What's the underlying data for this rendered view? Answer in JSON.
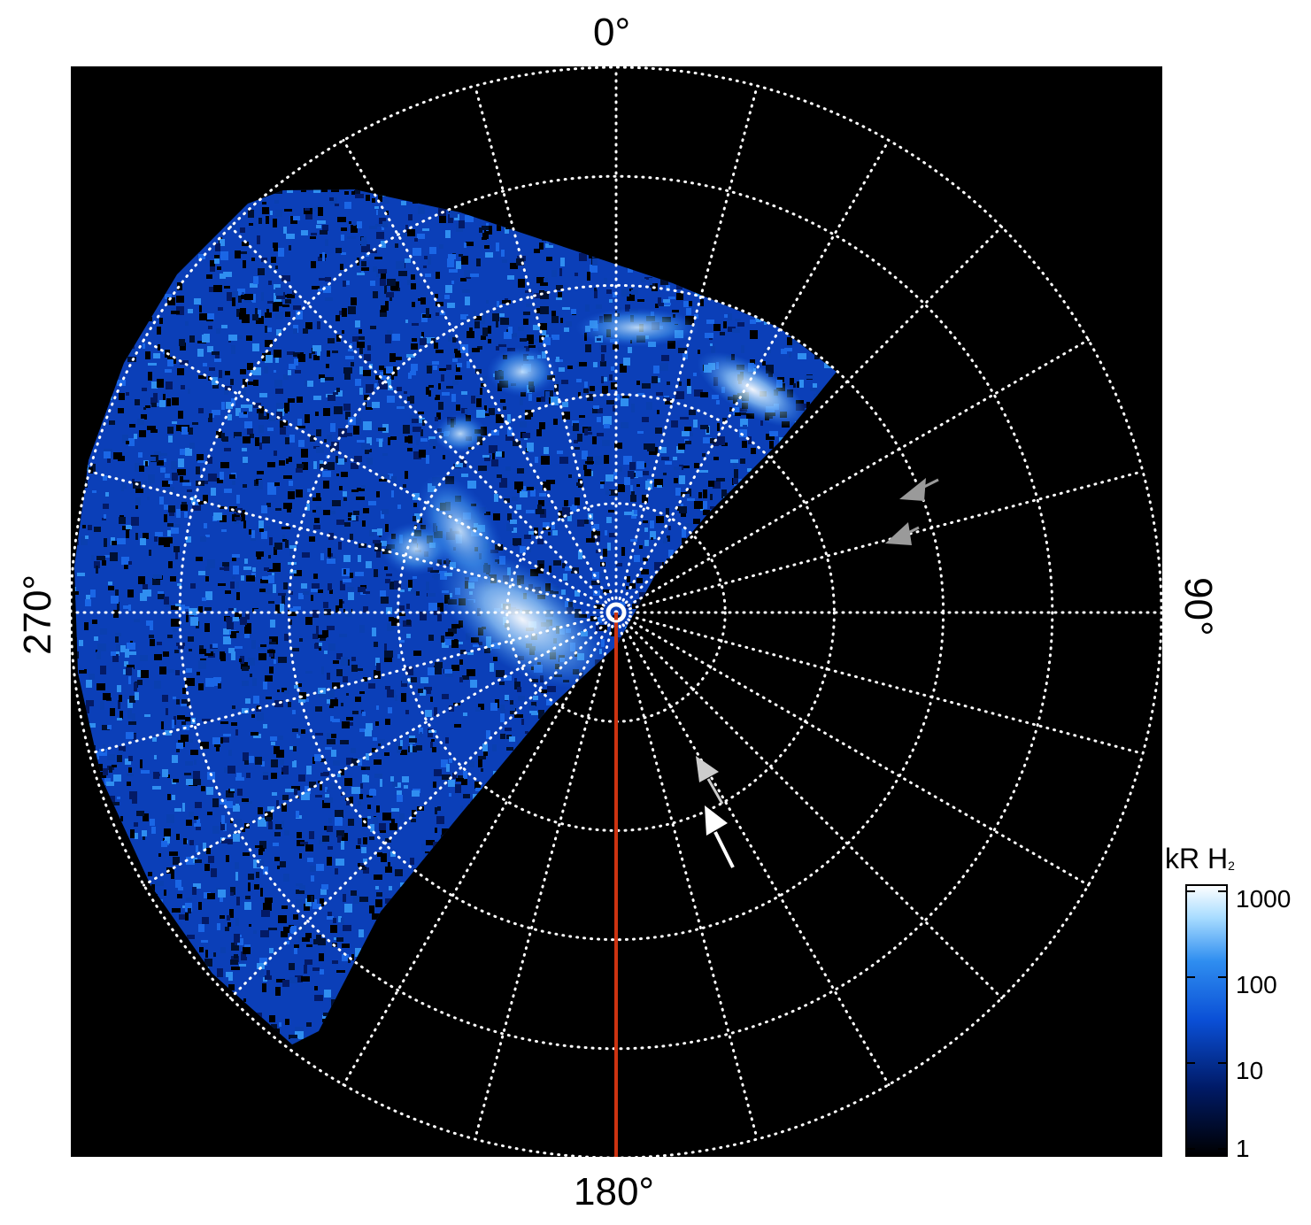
{
  "azimuth_labels": {
    "top": "0°",
    "right": "90°",
    "bottom": "180°",
    "left": "270°"
  },
  "colorbar": {
    "title": "kR H",
    "title_subscript": "2",
    "ticks": [
      "1000",
      "100",
      "10",
      "1"
    ],
    "colors": [
      "#000000",
      "#001a66",
      "#0a4fd6",
      "#2f8ef0",
      "#a8dcff",
      "#ffffff"
    ]
  },
  "colors": {
    "background": "#000000",
    "grid": "#ffffff",
    "meridian_line": "#cc3311",
    "arrow_white": "#ffffff",
    "arrow_gray": "#9a9a9a"
  }
}
